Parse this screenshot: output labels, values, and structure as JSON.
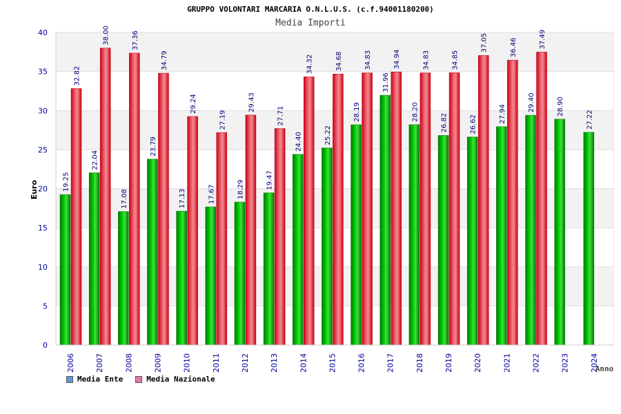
{
  "chart_data": {
    "type": "bar",
    "title": "GRUPPO VOLONTARI MARCARIA O.N.L.U.S. (c.f.94001180200)",
    "subtitle": "Media Importi",
    "xlabel": "Anno",
    "ylabel": "Euro",
    "ylim": [
      0,
      40
    ],
    "yticks": [
      "0",
      "5",
      "10",
      "15",
      "20",
      "25",
      "30",
      "35",
      "40"
    ],
    "categories": [
      "2006",
      "2007",
      "2008",
      "2009",
      "2010",
      "2011",
      "2012",
      "2013",
      "2014",
      "2015",
      "2016",
      "2017",
      "2018",
      "2019",
      "2020",
      "2021",
      "2022",
      "2023",
      "2024"
    ],
    "series": [
      {
        "name": "Media Ente",
        "color": "#00b000",
        "values": [
          19.25,
          22.04,
          17.08,
          23.79,
          17.13,
          17.67,
          18.29,
          19.47,
          24.4,
          25.22,
          28.19,
          31.96,
          28.2,
          26.82,
          26.62,
          27.94,
          29.4,
          28.9,
          27.22
        ],
        "labels": [
          "19.25",
          "22.04",
          "17.08",
          "23.79",
          "17.13",
          "17.67",
          "18.29",
          "19.47",
          "24.40",
          "25.22",
          "28.19",
          "31.96",
          "28.20",
          "26.82",
          "26.62",
          "27.94",
          "29.40",
          "28.90",
          "27.22"
        ]
      },
      {
        "name": "Media Nazionale",
        "color": "#e8202a",
        "values": [
          32.82,
          38.0,
          37.36,
          34.79,
          29.24,
          27.19,
          29.43,
          27.71,
          34.32,
          34.68,
          34.83,
          34.94,
          34.83,
          34.85,
          37.05,
          36.46,
          37.49,
          null,
          null
        ],
        "labels": [
          "32.82",
          "38.00",
          "37.36",
          "34.79",
          "29.24",
          "27.19",
          "29.43",
          "27.71",
          "34.32",
          "34.68",
          "34.83",
          "34.94",
          "34.83",
          "34.85",
          "37.05",
          "36.46",
          "37.49",
          null,
          null
        ]
      }
    ],
    "legend": [
      {
        "label": "Media Ente",
        "color": "#5b9bd5"
      },
      {
        "label": "Media Nazionale",
        "color": "#e07aa8"
      }
    ],
    "legend_position": "bottom-left",
    "grid": true
  }
}
